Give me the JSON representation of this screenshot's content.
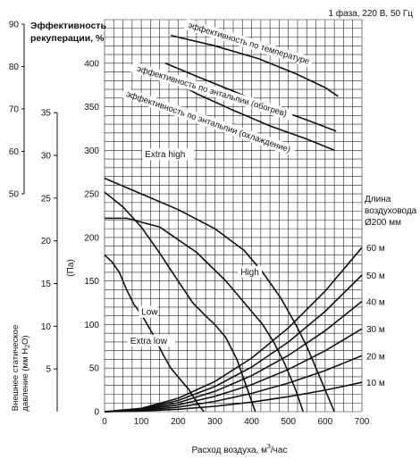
{
  "chart_data": {
    "type": "line",
    "power_note": "1 фаза, 220 В, 50 Гц",
    "xlabel_prefix": "Расход воздуха, м",
    "xlabel_exp": "3",
    "xlabel_suffix": "/час",
    "xlim": [
      0,
      700
    ],
    "x_ticks": [
      0,
      100,
      200,
      300,
      400,
      500,
      600,
      700
    ],
    "ylim": [
      0,
      450
    ],
    "y_ticks": [
      0,
      50,
      100,
      150,
      200,
      250,
      300,
      350,
      400
    ],
    "ylabel_pa": "(Па)",
    "ylabel_mm_line1": "Внешнее статическое",
    "ylabel_mm_line2": "давление (мм H",
    "ylabel_mm_sub": "2",
    "ylabel_mm_close": "O)",
    "mm_ticks": [
      5,
      10,
      15,
      20,
      25,
      30,
      35
    ],
    "efficiency_label_line1": "Эффективность",
    "efficiency_label_line2": "рекуперации, %",
    "efficiency_ticks": [
      50,
      60,
      70,
      80,
      90
    ],
    "duct_title_line1": "Длина",
    "duct_title_line2": "воздуховода",
    "duct_title_line3": "Ø200 мм",
    "efficiency_series": [
      {
        "name": "эффективность по температуре",
        "x": [
          180,
          300,
          420,
          520,
          600,
          635
        ],
        "y": [
          432,
          420,
          405,
          388,
          372,
          362
        ]
      },
      {
        "name": "эффективность по энтальпии (обогрев)",
        "x": [
          165,
          250,
          350,
          450,
          550,
          630
        ],
        "y": [
          400,
          385,
          368,
          350,
          335,
          322
        ]
      },
      {
        "name": "эффективность по энтальпии (охлаждение)",
        "x": [
          165,
          250,
          350,
          450,
          550,
          625
        ],
        "y": [
          385,
          365,
          346,
          328,
          313,
          300
        ]
      }
    ],
    "fan_series": [
      {
        "name": "Extra high",
        "x": [
          0,
          100,
          200,
          300,
          380,
          430,
          480,
          520,
          550,
          575,
          600,
          625
        ],
        "y": [
          268,
          250,
          232,
          210,
          185,
          160,
          130,
          100,
          75,
          50,
          25,
          0
        ]
      },
      {
        "name": "High",
        "x": [
          0,
          60,
          150,
          250,
          330,
          390,
          430,
          460,
          490,
          520,
          540
        ],
        "y": [
          222,
          222,
          212,
          183,
          150,
          120,
          100,
          80,
          55,
          25,
          0
        ]
      },
      {
        "name": "Low",
        "x": [
          0,
          50,
          100,
          150,
          200,
          240,
          270,
          300,
          330,
          360,
          385,
          410
        ],
        "y": [
          252,
          235,
          212,
          182,
          150,
          125,
          112,
          100,
          85,
          60,
          30,
          0
        ]
      },
      {
        "name": "Extra low",
        "x": [
          0,
          20,
          40,
          60,
          80,
          100,
          130,
          160,
          180,
          200,
          230,
          255,
          270
        ],
        "y": [
          180,
          172,
          160,
          140,
          123,
          112,
          90,
          65,
          50,
          40,
          25,
          8,
          0
        ]
      }
    ],
    "duct_series": [
      {
        "name": "10 м",
        "x": [
          0,
          100,
          200,
          300,
          400,
          500,
          600,
          700
        ],
        "y": [
          0,
          0.7,
          2.8,
          6.2,
          11,
          17.2,
          24.7,
          33.6
        ]
      },
      {
        "name": "20 м",
        "x": [
          0,
          100,
          200,
          300,
          400,
          500,
          600,
          700
        ],
        "y": [
          0,
          1.3,
          5.2,
          11.8,
          21,
          32.8,
          47.2,
          64.3
        ]
      },
      {
        "name": "30 м",
        "x": [
          0,
          100,
          200,
          300,
          400,
          500,
          600,
          700
        ],
        "y": [
          0,
          1.9,
          7.8,
          17.5,
          31,
          48.5,
          69.9,
          95.1
        ]
      },
      {
        "name": "40 м",
        "x": [
          0,
          100,
          200,
          300,
          400,
          500,
          600,
          700
        ],
        "y": [
          0,
          2.6,
          10.3,
          23.3,
          41.3,
          64.6,
          93,
          126.6
        ]
      },
      {
        "name": "50 м",
        "x": [
          0,
          100,
          200,
          300,
          400,
          500,
          600,
          700
        ],
        "y": [
          0,
          3.2,
          12.8,
          28.8,
          51.2,
          80,
          115.2,
          156.8
        ]
      },
      {
        "name": "60 м",
        "x": [
          0,
          100,
          200,
          300,
          400,
          500,
          600,
          700
        ],
        "y": [
          0,
          3.8,
          15.4,
          34.6,
          61.5,
          96.1,
          138.4,
          188.4
        ]
      }
    ],
    "grid": true
  }
}
